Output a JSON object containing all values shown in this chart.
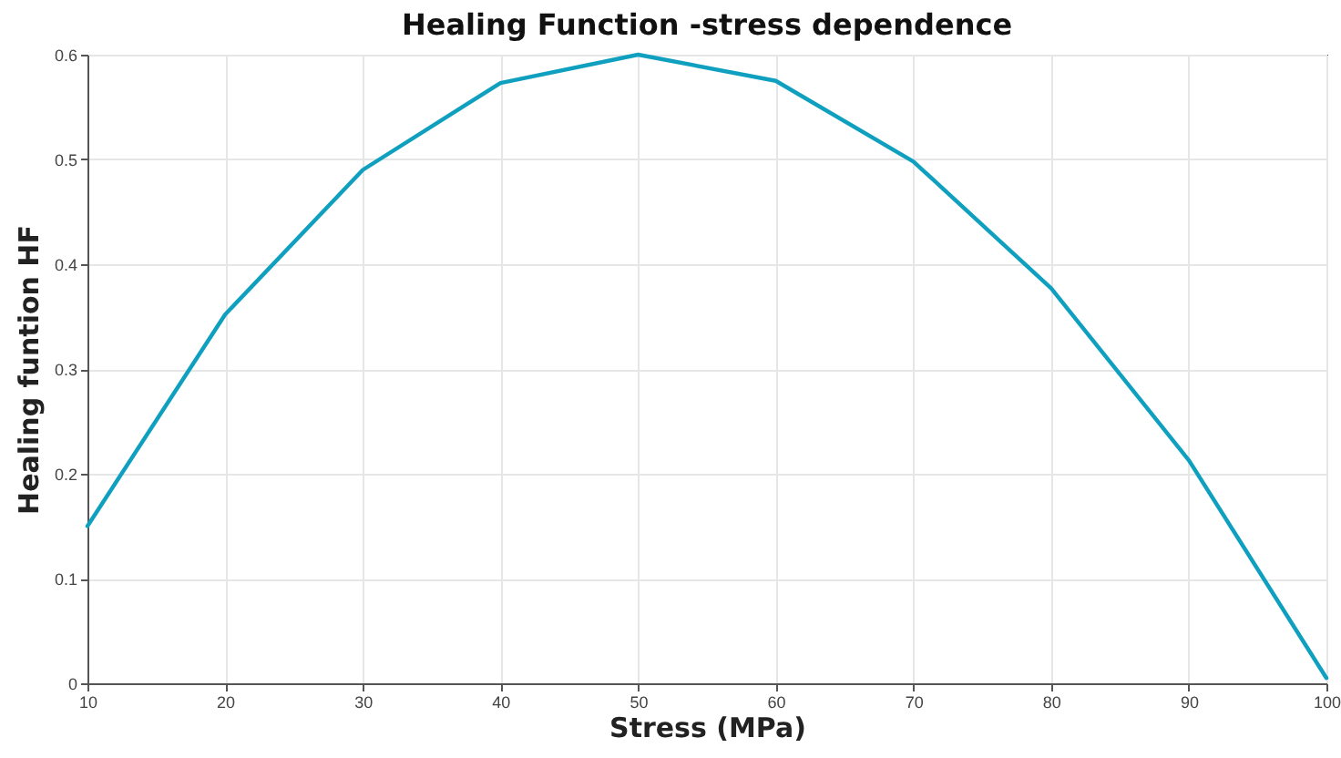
{
  "chart_data": {
    "type": "line",
    "title": "Healing Function -stress dependence",
    "xlabel": "Stress (MPa)",
    "ylabel": "Healing funtion HF",
    "x": [
      10,
      20,
      30,
      40,
      50,
      60,
      70,
      80,
      90,
      100
    ],
    "series": [
      {
        "color": "#0fa0c0",
        "values": [
          0.15,
          0.352,
          0.49,
          0.573,
          0.6,
          0.575,
          0.498,
          0.377,
          0.213,
          0.005
        ]
      }
    ],
    "xlim": [
      10,
      100
    ],
    "xticks": [
      10,
      20,
      30,
      40,
      50,
      60,
      70,
      80,
      90,
      100
    ],
    "ylim": [
      0,
      0.6
    ],
    "yticks": [
      0,
      0.1,
      0.2,
      0.3,
      0.4,
      0.5,
      0.6
    ],
    "grid": true,
    "legend": false,
    "marker": "none",
    "line_style": "solid"
  }
}
